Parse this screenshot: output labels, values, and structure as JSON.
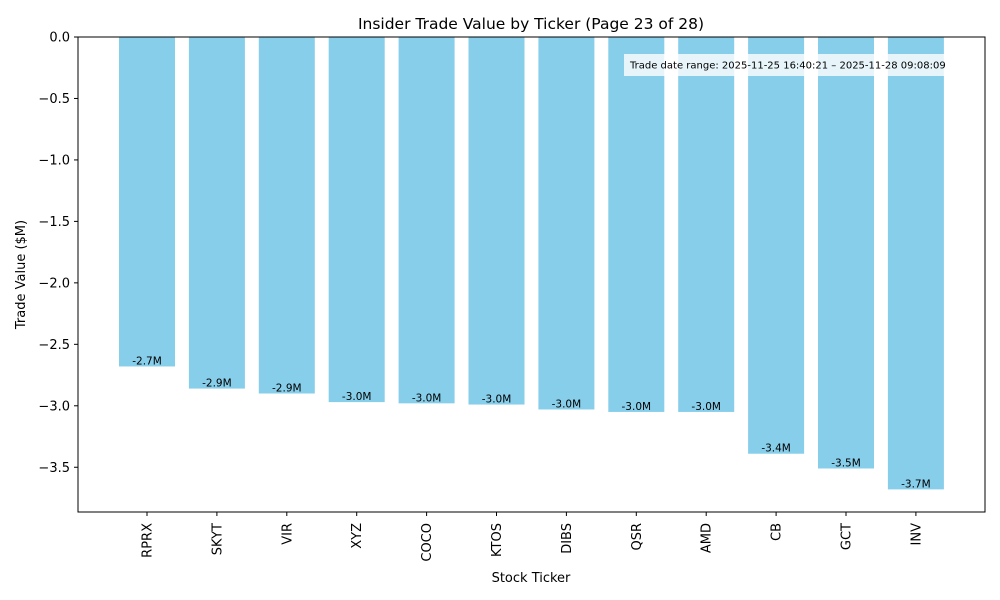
{
  "chart_data": {
    "type": "bar",
    "title": "Insider Trade Value by Ticker (Page 23 of 28)",
    "xlabel": "Stock Ticker",
    "ylabel": "Trade Value ($M)",
    "categories": [
      "RPRX",
      "SKYT",
      "VIR",
      "XYZ",
      "COCO",
      "KTOS",
      "DIBS",
      "QSR",
      "AMD",
      "CB",
      "GCT",
      "INV"
    ],
    "values": [
      -2.68,
      -2.86,
      -2.9,
      -2.97,
      -2.98,
      -2.99,
      -3.03,
      -3.05,
      -3.05,
      -3.39,
      -3.51,
      -3.68
    ],
    "data_labels": [
      "-2.7M",
      "-2.9M",
      "-2.9M",
      "-3.0M",
      "-3.0M",
      "-3.0M",
      "-3.0M",
      "-3.0M",
      "-3.0M",
      "-3.4M",
      "-3.5M",
      "-3.7M"
    ],
    "ylim": [
      -3.864,
      0.0
    ],
    "yticks": [
      0.0,
      -0.5,
      -1.0,
      -1.5,
      -2.0,
      -2.5,
      -3.0,
      -3.5
    ],
    "ytick_labels": [
      "0.0",
      "−0.5",
      "−1.0",
      "−1.5",
      "−2.0",
      "−2.5",
      "−3.0",
      "−3.5"
    ],
    "annotation": "Trade date range: 2025-11-25 16:40:21 – 2025-11-28 09:08:09",
    "annotation_placement": "top-right",
    "grid": false,
    "bar_color": "#87CEEB"
  }
}
